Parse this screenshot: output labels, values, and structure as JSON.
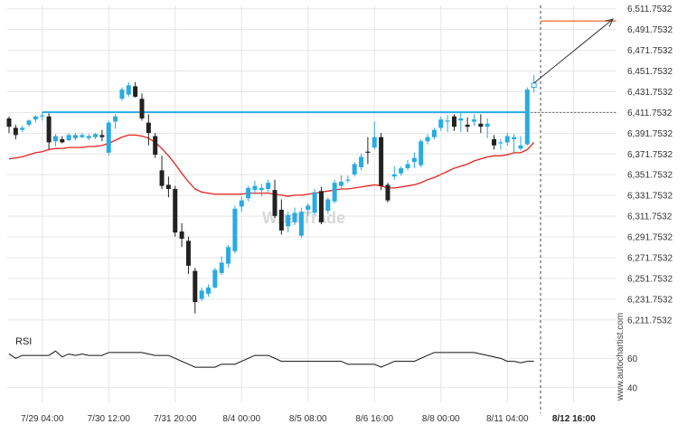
{
  "chart_data": {
    "type": "candlestick",
    "y_ticks": [
      "6,511.7532",
      "6,491.7532",
      "6,471.7532",
      "6,451.7532",
      "6,431.7532",
      "6,411.7532",
      "6,391.7532",
      "6,371.7532",
      "6,351.7532",
      "6,331.7532",
      "6,311.7532",
      "6,291.7532",
      "6,271.7532",
      "6,251.7532",
      "6,231.7532",
      "6,211.7532"
    ],
    "y_tick_values": [
      6511.7532,
      6491.7532,
      6471.7532,
      6451.7532,
      6431.7532,
      6411.7532,
      6391.7532,
      6371.7532,
      6351.7532,
      6331.7532,
      6311.7532,
      6291.7532,
      6271.7532,
      6251.7532,
      6231.7532,
      6211.7532
    ],
    "ylim": [
      6202,
      6515
    ],
    "x_ticks": [
      {
        "label": "7/29 04:00",
        "bar": 5
      },
      {
        "label": "7/30 12:00",
        "bar": 15
      },
      {
        "label": "7/31 20:00",
        "bar": 25
      },
      {
        "label": "8/4 00:00",
        "bar": 35
      },
      {
        "label": "8/5 08:00",
        "bar": 45
      },
      {
        "label": "8/6 16:00",
        "bar": 55
      },
      {
        "label": "8/8 00:00",
        "bar": 65
      },
      {
        "label": "8/11 04:00",
        "bar": 75
      },
      {
        "label": "8/12 16:00",
        "bar": 85,
        "bold": true
      }
    ],
    "candles": [
      [
        6406,
        6408,
        6392,
        6398
      ],
      [
        6397,
        6400,
        6386,
        6390
      ],
      [
        6395,
        6399,
        6393,
        6397
      ],
      [
        6400,
        6405,
        6398,
        6404
      ],
      [
        6405,
        6409,
        6402,
        6408
      ],
      [
        6408,
        6412,
        6404,
        6409
      ],
      [
        6408,
        6411,
        6376,
        6383
      ],
      [
        6384,
        6391,
        6379,
        6389
      ],
      [
        6386,
        6389,
        6382,
        6383
      ],
      [
        6385,
        6392,
        6384,
        6390
      ],
      [
        6387,
        6392,
        6385,
        6390
      ],
      [
        6388,
        6392,
        6387,
        6390
      ],
      [
        6387,
        6391,
        6385,
        6389
      ],
      [
        6388,
        6392,
        6386,
        6391
      ],
      [
        6390,
        6395,
        6384,
        6388
      ],
      [
        6373,
        6404,
        6370,
        6402
      ],
      [
        6403,
        6410,
        6396,
        6408
      ],
      [
        6425,
        6436,
        6423,
        6434
      ],
      [
        6429,
        6441,
        6427,
        6438
      ],
      [
        6437,
        6441,
        6426,
        6427
      ],
      [
        6425,
        6430,
        6404,
        6406
      ],
      [
        6402,
        6410,
        6380,
        6392
      ],
      [
        6389,
        6392,
        6368,
        6371
      ],
      [
        6356,
        6370,
        6338,
        6341
      ],
      [
        6342,
        6350,
        6330,
        6338
      ],
      [
        6338,
        6341,
        6292,
        6296
      ],
      [
        6297,
        6305,
        6282,
        6290
      ],
      [
        6288,
        6292,
        6256,
        6264
      ],
      [
        6259,
        6262,
        6218,
        6229
      ],
      [
        6232,
        6243,
        6230,
        6240
      ],
      [
        6237,
        6246,
        6234,
        6243
      ],
      [
        6243,
        6262,
        6242,
        6260
      ],
      [
        6257,
        6273,
        6255,
        6267
      ],
      [
        6266,
        6284,
        6262,
        6282
      ],
      [
        6278,
        6322,
        6276,
        6319
      ],
      [
        6321,
        6331,
        6316,
        6327
      ],
      [
        6329,
        6341,
        6326,
        6339
      ],
      [
        6337,
        6346,
        6333,
        6341
      ],
      [
        6337,
        6343,
        6331,
        6339
      ],
      [
        6338,
        6347,
        6335,
        6344
      ],
      [
        6337,
        6347,
        6310,
        6312
      ],
      [
        6318,
        6328,
        6294,
        6298
      ],
      [
        6302,
        6316,
        6296,
        6313
      ],
      [
        6306,
        6320,
        6303,
        6315
      ],
      [
        6293,
        6320,
        6291,
        6316
      ],
      [
        6318,
        6324,
        6312,
        6322
      ],
      [
        6315,
        6338,
        6313,
        6335
      ],
      [
        6336,
        6340,
        6304,
        6306
      ],
      [
        6317,
        6330,
        6314,
        6328
      ],
      [
        6326,
        6347,
        6324,
        6344
      ],
      [
        6341,
        6351,
        6339,
        6345
      ],
      [
        6347,
        6351,
        6344,
        6347
      ],
      [
        6352,
        6364,
        6350,
        6362
      ],
      [
        6359,
        6372,
        6356,
        6369
      ],
      [
        6374,
        6388,
        6362,
        6373
      ],
      [
        6378,
        6403,
        6376,
        6388
      ],
      [
        6388,
        6392,
        6337,
        6341
      ],
      [
        6342,
        6344,
        6325,
        6327
      ],
      [
        6350,
        6360,
        6347,
        6352
      ],
      [
        6353,
        6360,
        6351,
        6358
      ],
      [
        6358,
        6366,
        6356,
        6362
      ],
      [
        6364,
        6373,
        6358,
        6368
      ],
      [
        6361,
        6386,
        6359,
        6384
      ],
      [
        6384,
        6391,
        6381,
        6388
      ],
      [
        6388,
        6397,
        6386,
        6395
      ],
      [
        6397,
        6408,
        6394,
        6405
      ],
      [
        6403,
        6409,
        6393,
        6404
      ],
      [
        6408,
        6410,
        6394,
        6398
      ],
      [
        6404,
        6412,
        6393,
        6406
      ],
      [
        6400,
        6407,
        6393,
        6398
      ],
      [
        6403,
        6410,
        6399,
        6405
      ],
      [
        6401,
        6410,
        6392,
        6398
      ],
      [
        6398,
        6406,
        6387,
        6401
      ],
      [
        6386,
        6390,
        6376,
        6380
      ],
      [
        6382,
        6386,
        6376,
        6383
      ],
      [
        6383,
        6392,
        6380,
        6389
      ],
      [
        6386,
        6391,
        6373,
        6388
      ],
      [
        6377,
        6389,
        6375,
        6380
      ],
      [
        6381,
        6436,
        6380,
        6434
      ]
    ],
    "forecast_candle": [
      6436,
      6448,
      6431,
      6440
    ],
    "moving_average": {
      "color": "#e8221c",
      "values": [
        6367,
        6368,
        6369,
        6371,
        6373,
        6374,
        6376,
        6377,
        6377,
        6378,
        6378,
        6378,
        6379,
        6379,
        6380,
        6382,
        6385,
        6388,
        6390,
        6390,
        6389,
        6387,
        6383,
        6377,
        6370,
        6362,
        6353,
        6345,
        6338,
        6335,
        6334,
        6333,
        6333,
        6333,
        6333,
        6333,
        6334,
        6334,
        6334,
        6334,
        6333,
        6332,
        6331,
        6332,
        6332,
        6333,
        6334,
        6335,
        6336,
        6337,
        6338,
        6338,
        6339,
        6340,
        6341,
        6342,
        6341,
        6339,
        6339,
        6340,
        6341,
        6342,
        6344,
        6347,
        6349,
        6352,
        6355,
        6358,
        6360,
        6362,
        6365,
        6367,
        6369,
        6370,
        6370,
        6371,
        6373,
        6373,
        6376,
        6383
      ]
    },
    "horizontal_line": {
      "value": 6412,
      "color": "#29abe2"
    },
    "target_line": {
      "value": 6500,
      "color": "#e8541c"
    },
    "current_price_level": 6411.7532,
    "colors": {
      "up": "#29abe2",
      "down": "#222222",
      "grid": "#e6e6e6",
      "arrow": "#333333"
    },
    "rsi": {
      "title": "RSI",
      "ticks": [
        "60",
        "40"
      ],
      "tick_values": [
        60,
        40
      ],
      "ylim": [
        30,
        75
      ],
      "values": [
        63,
        60,
        62,
        62,
        62,
        62,
        62,
        65,
        61,
        63,
        62,
        63,
        62,
        62,
        62,
        64,
        64,
        64,
        64,
        64,
        64,
        63,
        62,
        62,
        62,
        60,
        58,
        56,
        54,
        54,
        54,
        54,
        56,
        56,
        56,
        58,
        60,
        62,
        62,
        62,
        60,
        58,
        58,
        58,
        58,
        58,
        58,
        58,
        58,
        58,
        58,
        56,
        56,
        56,
        56,
        56,
        54,
        56,
        58,
        58,
        58,
        58,
        60,
        62,
        64,
        64,
        64,
        64,
        64,
        64,
        64,
        63,
        62,
        61,
        60,
        58,
        58,
        57,
        58,
        58
      ]
    }
  },
  "watermark": "WhatTrade",
  "credit": "www.autochartist.com"
}
